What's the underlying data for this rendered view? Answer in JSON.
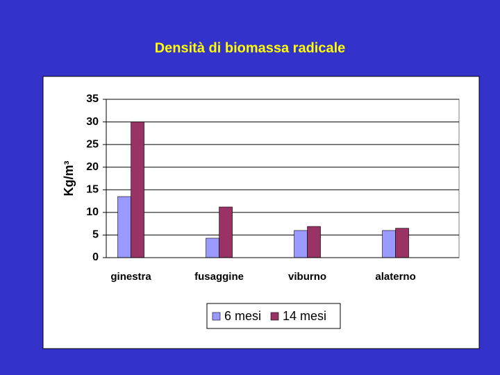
{
  "chart_data": {
    "type": "bar",
    "title": "Densità di biomassa radicale",
    "y_label": "Kg/m³",
    "categories": [
      "ginestra",
      "fusaggine",
      "viburno",
      "alaterno"
    ],
    "series": [
      {
        "name": "6 mesi",
        "color": "#9999ff",
        "values": [
          13.5,
          4.3,
          6.0,
          6.0
        ]
      },
      {
        "name": "14 mesi",
        "color": "#993366",
        "values": [
          30,
          11.2,
          6.9,
          6.5
        ]
      }
    ],
    "ylim": [
      0,
      35
    ],
    "yticks": [
      0,
      5,
      10,
      15,
      20,
      25,
      30,
      35
    ],
    "grid": true,
    "legend": "bottom"
  }
}
